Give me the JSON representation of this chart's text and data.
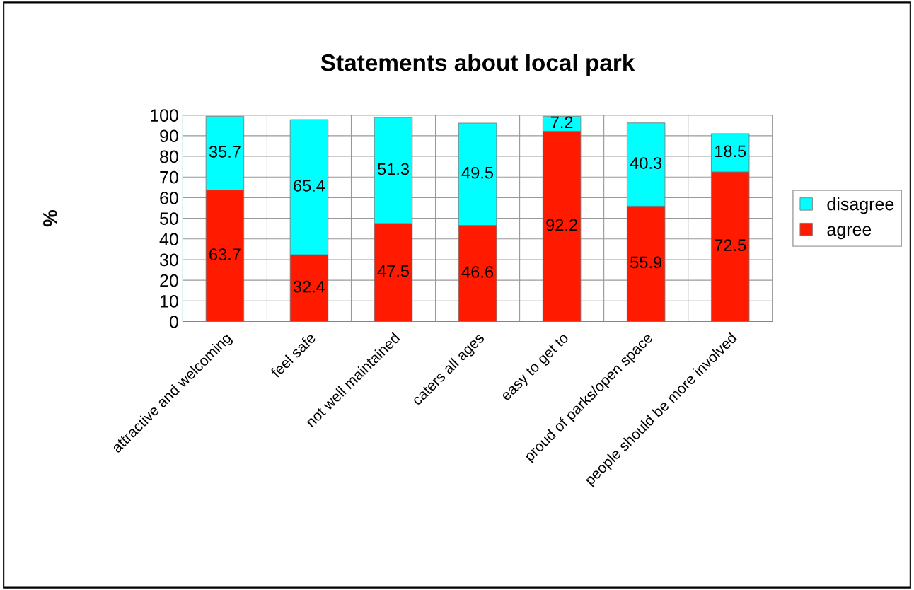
{
  "chart_data": {
    "type": "bar",
    "stacked": true,
    "title": "Statements about local park",
    "ylabel": "%",
    "categories": [
      "attractive and welcoming",
      "feel safe",
      "not well maintained",
      "caters all ages",
      "easy to get to",
      "proud of parks/open space",
      "people should be more involved"
    ],
    "series": [
      {
        "name": "agree",
        "color": "#ff1a00",
        "values": [
          63.7,
          32.4,
          47.5,
          46.6,
          92.2,
          55.9,
          72.5
        ]
      },
      {
        "name": "disagree",
        "color": "#00ffff",
        "values": [
          35.7,
          65.4,
          51.3,
          49.5,
          7.2,
          40.3,
          18.5
        ]
      }
    ],
    "ylim": [
      0,
      100
    ],
    "yticks": [
      0,
      10,
      20,
      30,
      40,
      50,
      60,
      70,
      80,
      90,
      100
    ],
    "grid": true,
    "legend": "right",
    "data_labels": true
  }
}
